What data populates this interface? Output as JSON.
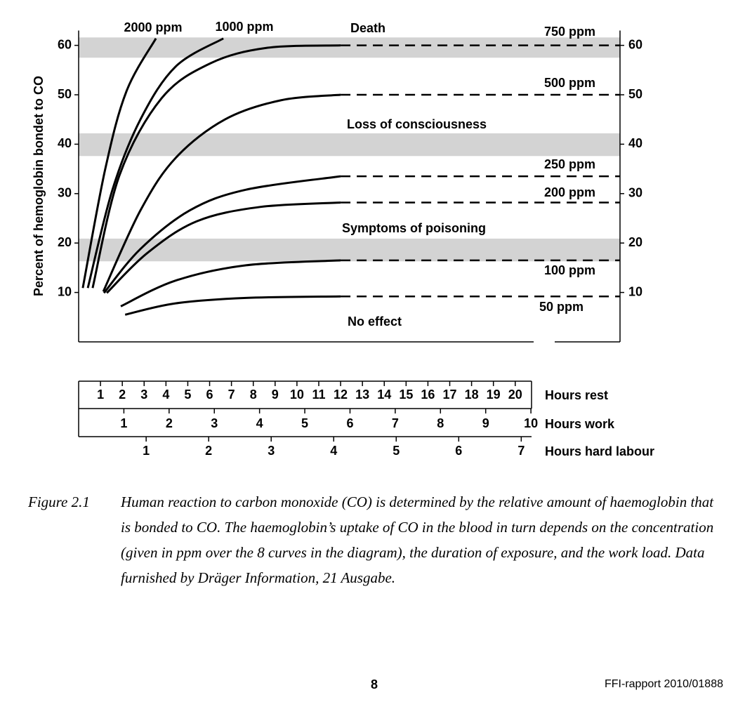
{
  "chart_data": {
    "type": "line",
    "y_axis_label": "Percent of hemoglobin bondet to CO",
    "ylim": [
      0,
      63
    ],
    "yticks": [
      10,
      20,
      30,
      40,
      50,
      60
    ],
    "xlim": [
      0,
      24.8
    ],
    "bands": [
      {
        "label": "Death",
        "range": [
          57.5,
          61.6
        ],
        "color": "#d3d3d3"
      },
      {
        "label": "Loss of consciousness",
        "range": [
          37.6,
          42.2
        ],
        "color": "#d3d3d3"
      },
      {
        "label": "Symptoms of poisoning",
        "range": [
          16.3,
          20.9
        ],
        "color": "#d3d3d3"
      }
    ],
    "zone_label_no_effect": "No effect",
    "x_axes": [
      {
        "label": "Hours rest",
        "xlim": [
          0,
          24.8
        ],
        "ticks": [
          1,
          2,
          3,
          4,
          5,
          6,
          7,
          8,
          9,
          10,
          11,
          12,
          13,
          14,
          15,
          16,
          17,
          18,
          19,
          20
        ]
      },
      {
        "label": "Hours work",
        "xlim": [
          0,
          11.97
        ],
        "ticks": [
          1,
          2,
          3,
          4,
          5,
          6,
          7,
          8,
          9,
          10
        ]
      },
      {
        "label": "Hours hard labour",
        "xlim": [
          -0.08,
          8.58
        ],
        "ticks": [
          1,
          2,
          3,
          4,
          5,
          6,
          7
        ]
      }
    ],
    "series": [
      {
        "name": "2000 ppm",
        "color": "#000000",
        "x": [
          0.19,
          1.22,
          2.19,
          3.54
        ],
        "values": [
          10.9,
          35,
          50.7,
          61.4
        ],
        "dashed_continuation": false
      },
      {
        "name": "1000 ppm",
        "color": "#000000",
        "x": [
          0.42,
          1.55,
          2.83,
          4.44,
          6.63
        ],
        "values": [
          10.9,
          30.8,
          45,
          55.7,
          61.4
        ],
        "dashed_continuation": false
      },
      {
        "name": "750 ppm",
        "color": "#000000",
        "x": [
          0.64,
          1.87,
          3.8,
          6.05,
          8.63,
          12
        ],
        "values": [
          10.9,
          33.7,
          49.3,
          56.4,
          59.5,
          60
        ],
        "dashed_continuation": true
      },
      {
        "name": "500 ppm",
        "color": "#000000",
        "x": [
          1.13,
          2.83,
          4.44,
          6.7,
          9.28,
          12
        ],
        "values": [
          10.2,
          26.6,
          37.2,
          45,
          48.9,
          50
        ],
        "dashed_continuation": true
      },
      {
        "name": "250 ppm",
        "color": "#000000",
        "x": [
          1.16,
          2.83,
          5.09,
          7.67,
          12
        ],
        "values": [
          9.9,
          18.8,
          26.6,
          30.8,
          33.5
        ],
        "dashed_continuation": true
      },
      {
        "name": "200 ppm",
        "color": "#000000",
        "x": [
          1.29,
          3.15,
          5.41,
          8.31,
          12
        ],
        "values": [
          9.9,
          18,
          24.4,
          27.3,
          28.2
        ],
        "dashed_continuation": true
      },
      {
        "name": "100 ppm",
        "color": "#000000",
        "x": [
          1.93,
          4.44,
          7.67,
          12
        ],
        "values": [
          7.2,
          12.4,
          15.5,
          16.5
        ],
        "dashed_continuation": true
      },
      {
        "name": "50 ppm",
        "color": "#000000",
        "x": [
          2.13,
          4.44,
          7.67,
          12
        ],
        "values": [
          5.5,
          7.8,
          8.9,
          9.2
        ],
        "dashed_continuation": true
      }
    ]
  },
  "caption": {
    "number": "Figure 2.1",
    "text": "Human reaction to carbon monoxide (CO) is determined by the relative amount of haemoglobin that is bonded to CO. The haemoglobin’s uptake of CO in the blood in turn depends on the concentration (given in ppm over the 8 curves in the diagram), the duration of exposure, and the work load. Data furnished by Dräger Information, 21 Ausgabe."
  },
  "footer": {
    "page_number": "8",
    "report_id": "FFI-rapport 2010/01888"
  }
}
